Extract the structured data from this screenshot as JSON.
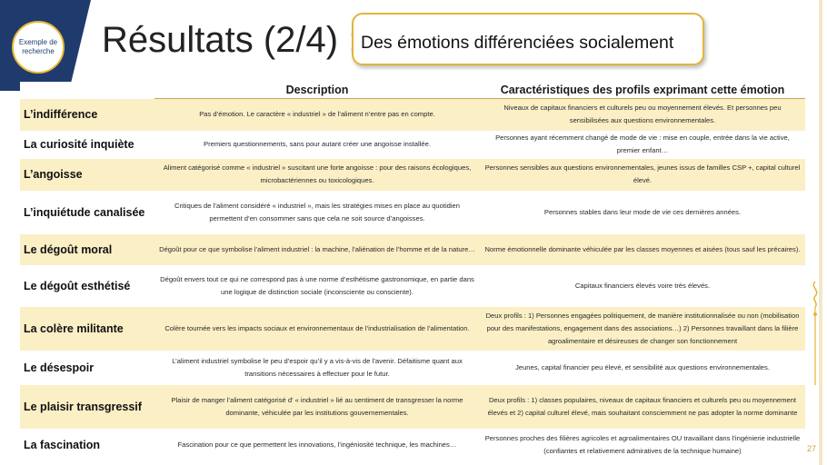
{
  "badge": {
    "text": "Exemple de recherche"
  },
  "title": "Résultats (2/4) :",
  "subtitle": "Des émotions différenciées socialement",
  "page_number": "27",
  "colors": {
    "navy": "#1f3b6e",
    "gold": "#e2b43a",
    "row_band": "#fbefc6"
  },
  "table": {
    "headers": [
      "",
      "Description",
      "Caractéristiques  des profils exprimant cette émotion"
    ],
    "rows": [
      {
        "emotion": "L’indifférence",
        "description": "Pas d’émotion.  Le caractère « industriel » de l’aliment n’entre  pas en compte.",
        "profiles": "Niveaux de capitaux financiers et culturels peu ou moyennement  élevés.  Et personnes peu sensibilisées aux questions environnementales."
      },
      {
        "emotion": "La curiosité inquiète",
        "description": "Premiers questionnements,  sans pour autant créer une angoisse installée.",
        "profiles": "Personnes ayant récemment  changé de mode de vie : mise en couple, entrée  dans la vie active, premier enfant…"
      },
      {
        "emotion": "L’angoisse",
        "description": "Aliment catégorisé comme  « industriel » suscitant une forte angoisse : pour des raisons écologiques, microbactériennes ou toxicologiques.",
        "profiles": "Personnes sensibles aux questions environnementales, jeunes issus de familles CSP +, capital culturel élevé."
      },
      {
        "emotion": "L’inquiétude  canalisée",
        "description": "Critiques de l’aliment considéré « industriel », mais les stratégies mises en place au quotidien permettent  d’en consommer sans que cela ne soit source d’angoisses.",
        "profiles": "Personnes stables dans leur mode de vie ces dernières années."
      },
      {
        "emotion": "Le dégoût  moral",
        "description": "Dégoût  pour ce que symbolise l’aliment industriel : la machine, l’aliénation de l’homme et de la nature…",
        "profiles": "Norme  émotionnelle dominante véhiculée par les classes moyennes et aisées (tous sauf les précaires)."
      },
      {
        "emotion": "Le dégoût  esthétisé",
        "description": "Dégoût  envers tout ce qui ne correspond pas à une norme d’esthétisme gastronomique, en partie dans une logique de distinction sociale (inconsciente ou consciente).",
        "profiles": "Capitaux financiers élevés voire très élevés."
      },
      {
        "emotion": "La colère militante",
        "description": "Colère tournée  vers les impacts sociaux et environnementaux  de  l’industrialisation de l’alimentation.",
        "profiles": "Deux profils : 1) Personnes engagées politiquement, de manière institutionnalisée ou non (mobilisation pour des manifestations, engagement  dans des associations…) 2) Personnes travaillant dans la filière agroalimentaire et désireuses de changer son fonctionnement"
      },
      {
        "emotion": "Le désespoir",
        "description": "L’aliment industriel symbolise le peu d’espoir qu’il y a vis-à-vis de l’avenir. Défaitisme quant aux transitions nécessaires à effectuer pour le futur.",
        "profiles": "Jeunes,  capital financier peu élevé,  et  sensibilité aux questions environnementales."
      },
      {
        "emotion": "Le plaisir  transgressif",
        "description": "Plaisir de manger l’aliment catégorisé d’ « industriel » lié au sentiment de transgresser la norme dominante, véhiculée par les institutions gouvernementales.",
        "profiles": "Deux profils : 1) classes populaires, niveaux de capitaux financiers et culturels peu ou moyennement  élevés et  2) capital culturel élevé, mais souhaitant consciemment ne pas adopter la norme dominante"
      },
      {
        "emotion": "La fascination",
        "description": "Fascination pour ce que  permettent   les innovations, l’ingéniosité technique, les machines…",
        "profiles": "Personnes proches des filières agricoles et agroalimentaires OU travaillant dans l’ingénierie industrielle (confiantes et relativement admiratives de la technique humaine)"
      }
    ]
  }
}
